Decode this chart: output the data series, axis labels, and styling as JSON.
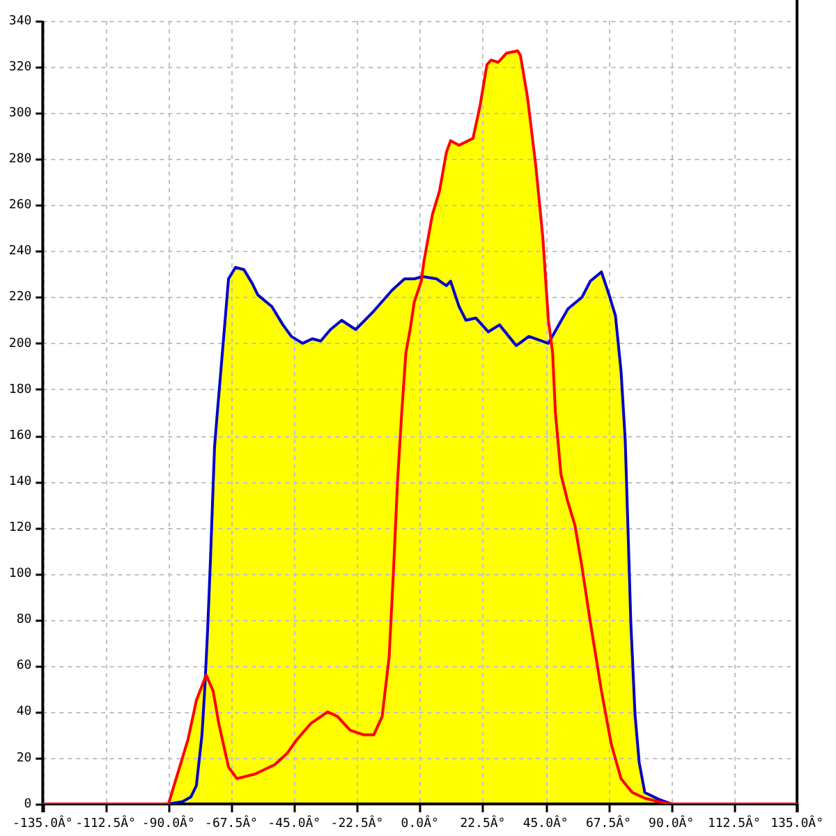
{
  "chart_data": {
    "type": "area",
    "xlim": [
      -135,
      135
    ],
    "ylim": [
      0,
      340
    ],
    "xticks": [
      {
        "value": -135,
        "label": "-135.0Â°"
      },
      {
        "value": -112.5,
        "label": "-112.5Â°"
      },
      {
        "value": -90,
        "label": "-90.0Â°"
      },
      {
        "value": -67.5,
        "label": "-67.5Â°"
      },
      {
        "value": -45,
        "label": "-45.0Â°"
      },
      {
        "value": -22.5,
        "label": "-22.5Â°"
      },
      {
        "value": 0,
        "label": "0.0Â°"
      },
      {
        "value": 22.5,
        "label": "22.5Â°"
      },
      {
        "value": 45,
        "label": "45.0Â°"
      },
      {
        "value": 67.5,
        "label": "67.5Â°"
      },
      {
        "value": 90,
        "label": "90.0Â°"
      },
      {
        "value": 112.5,
        "label": "112.5Â°"
      },
      {
        "value": 135,
        "label": "135.0Â°"
      }
    ],
    "yticks": [
      0,
      20,
      40,
      60,
      80,
      100,
      120,
      140,
      160,
      180,
      200,
      220,
      240,
      260,
      280,
      300,
      320,
      340
    ],
    "grid": true,
    "legend": false,
    "marker": "none",
    "line_style": "solid",
    "series": [
      {
        "type": "line",
        "color": "#ff0000",
        "x": [
          -135,
          -90,
          -83,
          -80,
          -76.5,
          -74,
          -72,
          -68.5,
          -65.5,
          -59,
          -52,
          -47.5,
          -44,
          -39,
          -33,
          -29.5,
          -25,
          -20,
          -16.5,
          -13.5,
          -11,
          -9.5,
          -8,
          -6.5,
          -5,
          -3.5,
          -2,
          0.5,
          1.5,
          3,
          4.5,
          7,
          9.5,
          11,
          14,
          19,
          21.5,
          24,
          25.5,
          28,
          31,
          35,
          36,
          38.5,
          41.5,
          44,
          46,
          47.5,
          48.5,
          50.5,
          53,
          55.5,
          58,
          61,
          65,
          68.5,
          72,
          76,
          80.5,
          85.5,
          90,
          135
        ],
        "values": [
          0,
          0,
          28,
          45,
          56,
          49,
          35,
          16,
          11,
          13,
          17,
          22,
          28,
          35,
          40,
          38,
          32,
          30,
          30,
          38,
          64,
          100,
          140,
          170,
          196,
          206,
          218,
          227,
          236,
          246,
          256,
          266,
          283,
          288,
          286,
          289,
          303,
          321,
          323,
          322,
          326,
          327,
          325,
          307,
          277,
          246,
          210,
          196,
          170,
          143,
          131,
          121,
          103,
          79,
          49,
          26,
          11,
          5,
          2.5,
          1,
          0,
          0
        ]
      },
      {
        "type": "line",
        "color": "#0000cc",
        "x": [
          -90,
          -85,
          -82,
          -80,
          -78,
          -77,
          -76,
          -75,
          -73.5,
          -72.5,
          -70,
          -68.5,
          -66,
          -63,
          -60,
          -58,
          -53,
          -49,
          -46,
          -42,
          -38.5,
          -35.5,
          -32,
          -28,
          -23,
          -16.5,
          -10,
          -5.5,
          -2,
          1,
          6,
          9.5,
          11,
          14,
          16.5,
          20,
          24.5,
          28.5,
          34.5,
          39,
          46,
          53,
          58,
          61,
          65,
          68,
          70,
          72,
          73.5,
          74.5,
          75.5,
          77,
          78.5,
          80.5,
          85.5,
          90
        ],
        "values": [
          0,
          1,
          3,
          8,
          30,
          50,
          75,
          105,
          155,
          170,
          206,
          228,
          233,
          232,
          226,
          221,
          216,
          208,
          203,
          200,
          202,
          201,
          206,
          210,
          206,
          214,
          223,
          228,
          228,
          229,
          228,
          225,
          227,
          216,
          210,
          211,
          205,
          208,
          199,
          203,
          200,
          215,
          220,
          227,
          231,
          220,
          212,
          188,
          158,
          119,
          79,
          39,
          18,
          5,
          2,
          0
        ]
      },
      {
        "color": "#ffff00",
        "x": [
          -77,
          -76,
          -75,
          -73.5,
          -72.5,
          -70,
          -68.5,
          -66,
          -63,
          -60,
          -58,
          -53,
          -49,
          -46,
          -42,
          -38.5,
          -35.5,
          -32,
          -28,
          -23,
          -16.5,
          -10,
          -5.5,
          -2,
          1
        ],
        "values": [
          50,
          75,
          105,
          155,
          170,
          206,
          228,
          233,
          232,
          226,
          221,
          216,
          208,
          203,
          200,
          202,
          201,
          206,
          210,
          206,
          214,
          223,
          228,
          228,
          229
        ]
      },
      {
        "color": "#ffff00",
        "x": [
          46,
          53,
          58,
          61,
          65,
          68,
          70,
          72,
          73.5,
          74.5,
          75.5,
          77,
          78.5,
          80.5,
          85.5,
          90
        ],
        "values": [
          200,
          215,
          220,
          227,
          231,
          220,
          212,
          188,
          158,
          119,
          79,
          39,
          18,
          5,
          2,
          0
        ]
      },
      {
        "color": "#ffff00",
        "x": [
          -90,
          -83,
          -80,
          -76.5
        ],
        "values": [
          0,
          28,
          45,
          56
        ]
      },
      {
        "color": "#ffff00",
        "x": [
          0.5,
          1.5,
          3,
          4.5,
          7,
          9.5,
          11,
          14,
          19,
          21.5,
          24,
          25.5,
          28,
          31,
          35,
          36,
          38.5,
          41.5,
          44,
          46
        ],
        "values": [
          227,
          236,
          246,
          256,
          266,
          283,
          288,
          286,
          289,
          303,
          321,
          323,
          322,
          326,
          327,
          325,
          307,
          277,
          246,
          210
        ]
      }
    ]
  }
}
